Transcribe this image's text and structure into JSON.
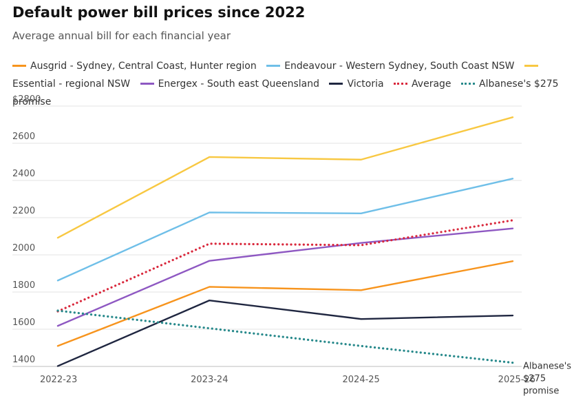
{
  "title": "Default power bill prices since 2022",
  "subtitle": "Average annual bill for each financial year",
  "chart_data": {
    "type": "line",
    "title": "Default power bill prices since 2022",
    "subtitle": "Average annual bill for each financial year",
    "xlabel": "",
    "ylabel": "",
    "categories": [
      "2022-23",
      "2023-24",
      "2024-25",
      "2025-26"
    ],
    "ylim": [
      1400,
      2800
    ],
    "yticks": [
      "$2800",
      "2600",
      "2400",
      "2200",
      "2000",
      "1800",
      "1600",
      "1400"
    ],
    "ytick_values": [
      2800,
      2600,
      2400,
      2200,
      2000,
      1800,
      1600,
      1400
    ],
    "grid": true,
    "legend_position": "top",
    "series": [
      {
        "name": "Ausgrid - Sydney, Central Coast, Hunter region",
        "color": "#f7941d",
        "style": "solid",
        "values": [
          1510,
          1828,
          1810,
          1966
        ]
      },
      {
        "name": "Endeavour - Western Sydney, South Coast NSW",
        "color": "#6fbfe8",
        "style": "solid",
        "values": [
          1862,
          2228,
          2223,
          2410
        ]
      },
      {
        "name": "Essential - regional NSW",
        "color": "#f8c842",
        "style": "solid",
        "values": [
          2092,
          2526,
          2512,
          2740
        ]
      },
      {
        "name": "Energex - South east Queensland",
        "color": "#8e58c2",
        "style": "solid",
        "values": [
          1618,
          1968,
          2064,
          2142
        ]
      },
      {
        "name": "Victoria",
        "color": "#1f2640",
        "style": "solid",
        "values": [
          1402,
          1755,
          1655,
          1674
        ]
      },
      {
        "name": "Average",
        "color": "#d9283c",
        "style": "dotted",
        "values": [
          1696,
          2060,
          2052,
          2186
        ]
      },
      {
        "name": "Albanese's $275 promise",
        "color": "#27898b",
        "style": "dotted",
        "values": [
          1700,
          1605,
          1510,
          1420
        ]
      }
    ],
    "annotations": [
      {
        "text": "Albanese's",
        "series": "Albanese's $275 promise"
      },
      {
        "text": "$275",
        "series": "Albanese's $275 promise"
      },
      {
        "text": "promise",
        "series": "Albanese's $275 promise"
      }
    ]
  }
}
